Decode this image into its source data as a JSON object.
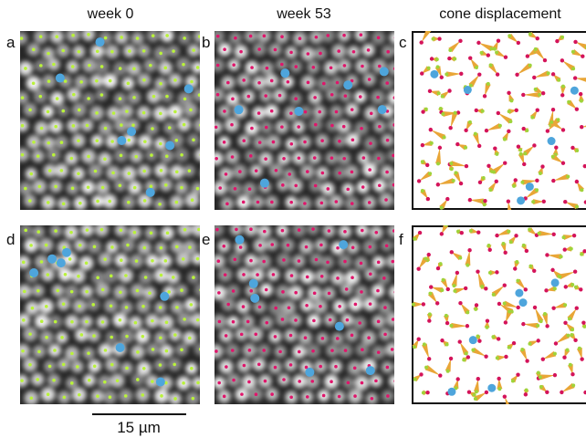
{
  "columns": [
    "week 0",
    "week 53",
    "cone displacement"
  ],
  "panels": [
    "a",
    "b",
    "c",
    "d",
    "e",
    "f"
  ],
  "scale_bar": {
    "label": "15 µm"
  }
}
